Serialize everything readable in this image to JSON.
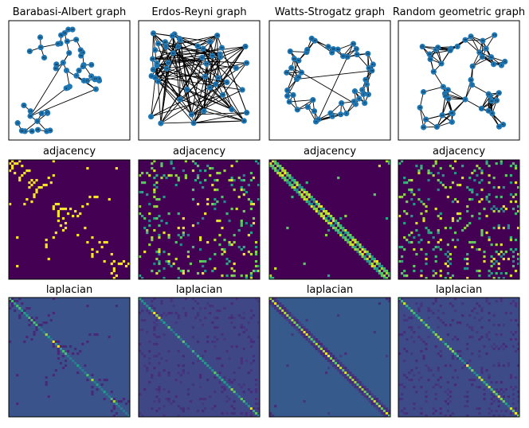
{
  "figure": {
    "rows": [
      {
        "row": "graph",
        "titles": [
          "Barabasi-Albert graph",
          "Erdos-Reyni graph",
          "Watts-Strogatz graph",
          "Random geometric graph"
        ]
      },
      {
        "row": "adjacency",
        "titles": [
          "adjacency",
          "adjacency",
          "adjacency",
          "adjacency"
        ]
      },
      {
        "row": "laplacian",
        "titles": [
          "laplacian",
          "laplacian",
          "laplacian",
          "laplacian"
        ]
      }
    ]
  },
  "chart_data": [
    {
      "type": "network",
      "title": "Barabasi-Albert graph",
      "node_color": "#1f77b4",
      "edge_color": "#000000",
      "node_count": 50
    },
    {
      "type": "network",
      "title": "Erdos-Reyni graph",
      "node_color": "#1f77b4",
      "edge_color": "#000000",
      "node_count": 50
    },
    {
      "type": "network",
      "title": "Watts-Strogatz graph",
      "node_color": "#1f77b4",
      "edge_color": "#000000",
      "node_count": 50
    },
    {
      "type": "network",
      "title": "Random geometric graph",
      "node_color": "#1f77b4",
      "edge_color": "#000000",
      "node_count": 50
    },
    {
      "type": "heatmap",
      "title": "adjacency",
      "colormap": "viridis",
      "matrix_size": 50
    },
    {
      "type": "heatmap",
      "title": "adjacency",
      "colormap": "viridis",
      "matrix_size": 50
    },
    {
      "type": "heatmap",
      "title": "adjacency",
      "colormap": "viridis",
      "matrix_size": 50
    },
    {
      "type": "heatmap",
      "title": "adjacency",
      "colormap": "viridis",
      "matrix_size": 50
    },
    {
      "type": "heatmap",
      "title": "laplacian",
      "colormap": "viridis",
      "matrix_size": 50
    },
    {
      "type": "heatmap",
      "title": "laplacian",
      "colormap": "viridis",
      "matrix_size": 50
    },
    {
      "type": "heatmap",
      "title": "laplacian",
      "colormap": "viridis",
      "matrix_size": 50
    },
    {
      "type": "heatmap",
      "title": "laplacian",
      "colormap": "viridis",
      "matrix_size": 50
    }
  ]
}
